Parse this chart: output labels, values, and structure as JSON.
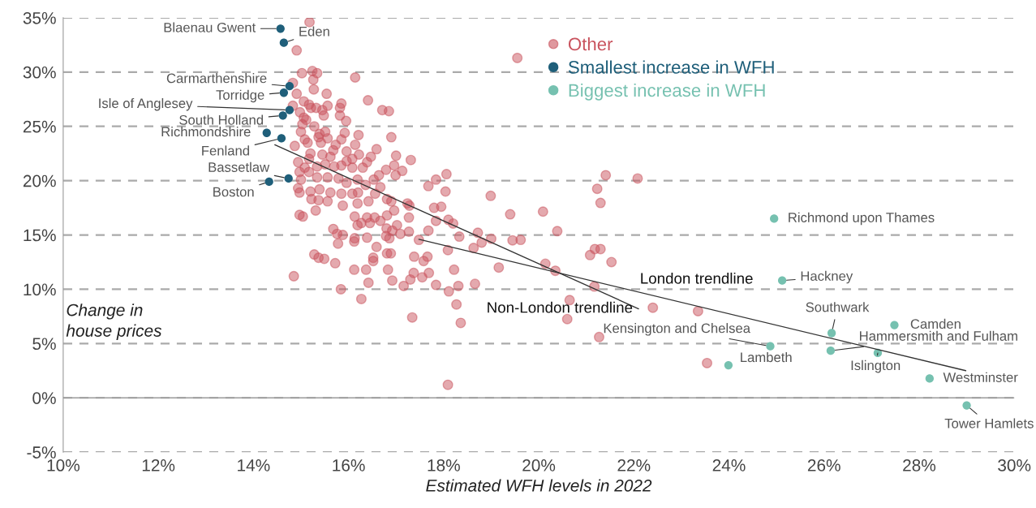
{
  "chart_data": {
    "type": "scatter",
    "xlabel": "Estimated WFH levels in 2022",
    "ylabel": "Change in house prices",
    "xlim": [
      10,
      30
    ],
    "xticks": [
      {
        "value": 10,
        "label": "10%"
      },
      {
        "value": 12,
        "label": "12%"
      },
      {
        "value": 14,
        "label": "14%"
      },
      {
        "value": 16,
        "label": "16%"
      },
      {
        "value": 18,
        "label": "18%"
      },
      {
        "value": 20,
        "label": "20%"
      },
      {
        "value": 22,
        "label": "22%"
      },
      {
        "value": 24,
        "label": "24%"
      },
      {
        "value": 26,
        "label": "26%"
      },
      {
        "value": 28,
        "label": "28%"
      },
      {
        "value": 30,
        "label": "30%"
      }
    ],
    "ylim": [
      -5,
      35
    ],
    "yticks": [
      {
        "value": -5,
        "label": "-5%"
      },
      {
        "value": 0,
        "label": "0%"
      },
      {
        "value": 5,
        "label": "5%"
      },
      {
        "value": 10,
        "label": "10%"
      },
      {
        "value": 15,
        "label": "15%"
      },
      {
        "value": 20,
        "label": "20%"
      },
      {
        "value": 25,
        "label": "25%"
      },
      {
        "value": 30,
        "label": "30%"
      },
      {
        "value": 35,
        "label": "35%"
      }
    ],
    "grid": "y",
    "legend": "top right",
    "marker": "circle",
    "ref_lines": [
      {
        "axis": "y",
        "value": 0,
        "color": "#999999",
        "line_style": "solid"
      }
    ],
    "series": [
      {
        "name": "Other",
        "color": "#c9535e",
        "x": [
          15.18,
          14.91,
          15.02,
          15.24,
          15.34,
          16.14,
          14.83,
          15.26,
          15.27,
          14.91,
          15.54,
          16.41,
          14.83,
          15.06,
          15.17,
          15.21,
          15.32,
          15.45,
          15.56,
          15.85,
          15.82,
          16.71,
          16.85,
          14.98,
          15.48,
          15.82,
          15.95,
          15.06,
          15.11,
          15.03,
          15.28,
          15.0,
          15.39,
          15.51,
          15.92,
          16.21,
          16.9,
          14.87,
          15.08,
          15.14,
          15.37,
          15.42,
          15.56,
          15.85,
          15.73,
          16.14,
          15.68,
          15.45,
          15.62,
          15.2,
          15.17,
          15.96,
          16.22,
          16.59,
          17.0,
          17.31,
          16.47,
          16.39,
          16.08,
          15.96,
          14.94,
          15.08,
          14.97,
          15.17,
          15.34,
          15.51,
          15.7,
          15.85,
          16.08,
          16.3,
          16.79,
          16.96,
          17.13,
          16.99,
          16.64,
          16.53,
          15.0,
          15.34,
          15.56,
          15.79,
          15.96,
          16.19,
          16.36,
          14.94,
          14.97,
          15.2,
          15.39,
          15.62,
          15.85,
          16.08,
          16.2,
          15.22,
          15.37,
          15.56,
          16.42,
          16.81,
          16.9,
          17.24,
          17.28,
          18.06,
          17.84,
          17.68,
          18.04,
          18.99,
          17.8,
          17.95,
          16.67,
          16.56,
          15.88,
          16.19,
          14.97,
          15.04,
          15.31,
          16.13,
          16.19,
          16.27,
          16.39,
          16.45,
          16.55,
          16.67,
          16.81,
          16.96,
          17.02,
          16.8,
          16.92,
          17.09,
          17.27,
          17.27,
          17.68,
          17.84,
          18.1,
          18.2,
          18.33,
          18.72,
          19.0,
          18.8,
          18.63,
          18.09,
          17.48,
          15.68,
          15.76,
          15.88,
          16.13,
          16.39,
          16.79,
          16.86,
          15.78,
          16.12,
          15.28,
          15.37,
          15.49,
          15.72,
          16.59,
          16.52,
          16.52,
          16.81,
          16.89,
          17.38,
          17.66,
          17.58,
          18.22,
          14.85,
          16.12,
          16.37,
          16.83,
          16.42,
          16.92,
          17.16,
          17.3,
          17.37,
          17.55,
          17.69,
          17.84,
          18.11,
          18.31,
          18.66,
          19.16,
          15.84,
          16.27,
          17.34,
          18.27,
          18.36,
          18.09,
          21.41,
          22.08,
          21.23,
          21.3,
          20.09,
          19.4,
          20.39,
          19.45,
          19.62,
          21.08,
          21.18,
          21.3,
          21.53,
          20.14,
          20.35,
          21.17,
          20.65,
          20.6,
          21.27,
          22.4,
          23.35,
          23.54,
          19.55
        ],
        "values": [
          34.6,
          32.0,
          29.9,
          30.1,
          29.9,
          29.5,
          29.0,
          29.3,
          28.4,
          28.0,
          28.0,
          27.4,
          26.9,
          27.3,
          27.0,
          26.7,
          26.7,
          26.5,
          26.9,
          27.1,
          26.7,
          26.5,
          26.4,
          26.3,
          26.0,
          26.0,
          25.5,
          25.8,
          25.6,
          25.2,
          25.0,
          24.5,
          24.3,
          24.5,
          24.4,
          24.2,
          24.0,
          23.2,
          23.8,
          23.5,
          24.0,
          23.5,
          23.9,
          23.8,
          23.3,
          23.3,
          22.8,
          22.4,
          22.2,
          22.5,
          22.0,
          22.7,
          22.4,
          22.9,
          22.3,
          21.9,
          22.2,
          21.7,
          22.0,
          21.8,
          21.7,
          21.2,
          20.8,
          20.8,
          21.3,
          21.5,
          21.3,
          21.4,
          21.2,
          21.2,
          21.0,
          21.4,
          20.9,
          20.5,
          20.5,
          20.1,
          20.1,
          20.3,
          20.3,
          20.2,
          19.8,
          20.1,
          19.6,
          19.3,
          18.9,
          19.0,
          19.2,
          18.9,
          18.8,
          18.8,
          18.9,
          18.3,
          18.2,
          18.1,
          18.1,
          18.3,
          18.1,
          17.9,
          17.7,
          20.6,
          20.1,
          19.5,
          19.0,
          18.6,
          17.5,
          17.6,
          19.4,
          18.8,
          17.7,
          17.9,
          16.85,
          16.7,
          17.25,
          16.7,
          15.9,
          16.1,
          16.6,
          16.1,
          16.6,
          16.3,
          16.8,
          17.25,
          15.9,
          15.6,
          15.4,
          15.1,
          16.6,
          15.3,
          15.4,
          16.3,
          16.4,
          16.05,
          14.85,
          15.2,
          14.65,
          14.3,
          13.8,
          13.6,
          14.55,
          15.55,
          15.1,
          15.0,
          14.7,
          14.75,
          14.9,
          14.7,
          14.2,
          14.4,
          13.2,
          12.9,
          12.8,
          12.4,
          13.9,
          12.9,
          12.6,
          13.3,
          13.3,
          13.0,
          13.0,
          12.6,
          11.8,
          11.2,
          11.8,
          11.8,
          11.8,
          10.6,
          10.8,
          10.3,
          10.9,
          11.5,
          11.1,
          11.5,
          10.4,
          9.8,
          10.3,
          10.5,
          12.0,
          10.0,
          9.1,
          7.4,
          8.6,
          6.9,
          1.2,
          20.5,
          20.2,
          19.25,
          17.95,
          17.15,
          16.9,
          15.35,
          14.5,
          14.55,
          13.15,
          13.7,
          13.7,
          12.5,
          12.35,
          11.7,
          10.25,
          9.0,
          7.25,
          5.6,
          8.3,
          7.98,
          3.2,
          31.3
        ]
      },
      {
        "name": "Smallest increase in WFH",
        "color": "#1f5f7a",
        "x": [
          14.57,
          14.64,
          14.76,
          14.64,
          14.76,
          14.62,
          14.28,
          14.59,
          14.74,
          14.33
        ],
        "values": [
          34.0,
          32.7,
          28.7,
          28.1,
          26.5,
          26.0,
          24.4,
          23.9,
          20.2,
          19.9
        ]
      },
      {
        "name": "Biggest increase in WFH",
        "color": "#76c1b0",
        "x": [
          24.95,
          25.12,
          26.16,
          27.48,
          24.87,
          26.14,
          27.13,
          23.99,
          28.22,
          29.0
        ],
        "values": [
          16.5,
          10.8,
          5.96,
          6.7,
          4.75,
          4.34,
          4.13,
          3.0,
          1.78,
          -0.7
        ]
      },
      {
        "type": "line",
        "color": "#333333",
        "marker": "none",
        "x": [
          17.48,
          28.98
        ],
        "values": [
          14.6,
          2.5
        ]
      },
      {
        "type": "line",
        "color": "#333333",
        "marker": "none",
        "x": [
          14.45,
          22.1
        ],
        "values": [
          23.3,
          8.2
        ]
      }
    ],
    "annotations": [
      "London trendline",
      "Non-London trendline",
      {
        "text": "Blaenau Gwent",
        "x": 14.57,
        "y": 34.0
      },
      {
        "text": "Eden",
        "x": 14.64,
        "y": 32.7
      },
      {
        "text": "Carmarthenshire",
        "x": 14.76,
        "y": 28.7
      },
      {
        "text": "Torridge",
        "x": 14.64,
        "y": 28.1
      },
      {
        "text": "Isle of Anglesey",
        "x": 14.76,
        "y": 26.5
      },
      {
        "text": "South Holland",
        "x": 14.62,
        "y": 26.0
      },
      {
        "text": "Richmondshire",
        "x": 14.28,
        "y": 24.4
      },
      {
        "text": "Fenland",
        "x": 14.59,
        "y": 23.9
      },
      {
        "text": "Bassetlaw",
        "x": 14.74,
        "y": 20.2
      },
      {
        "text": "Boston",
        "x": 14.33,
        "y": 19.9
      },
      {
        "text": "Richmond upon Thames",
        "x": 24.95,
        "y": 16.5
      },
      {
        "text": "Hackney",
        "x": 25.12,
        "y": 10.8
      },
      {
        "text": "Southwark",
        "x": 26.16,
        "y": 5.96
      },
      {
        "text": "Camden",
        "x": 27.48,
        "y": 6.7
      },
      {
        "text": "Kensington and Chelsea",
        "x": 24.87,
        "y": 4.75
      },
      {
        "text": "Hammersmith and Fulham",
        "x": 26.14,
        "y": 4.34
      },
      {
        "text": "Islington",
        "x": 27.13,
        "y": 4.13
      },
      {
        "text": "Lambeth",
        "x": 23.99,
        "y": 3.0
      },
      {
        "text": "Westminster",
        "x": 28.22,
        "y": 1.78
      },
      {
        "text": "Tower Hamlets",
        "x": 29.0,
        "y": -0.7
      }
    ]
  }
}
